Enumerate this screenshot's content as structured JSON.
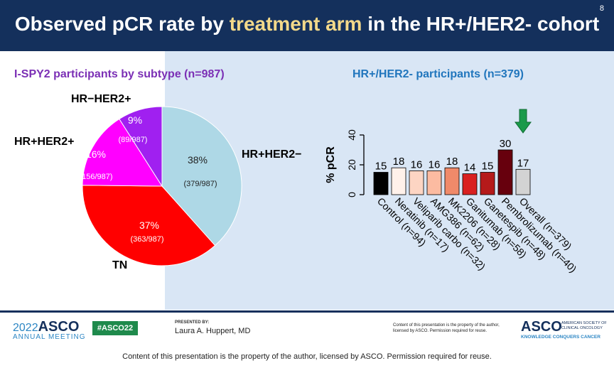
{
  "slide": {
    "number": "8",
    "title_pre": "Observed pCR rate by ",
    "title_highlight": "treatment arm",
    "title_post": " in the HR+/HER2- cohort"
  },
  "colors": {
    "title_bg": "#14305c",
    "highlight": "#f3d98a",
    "panel": "#d9e6f5"
  },
  "chart_data": [
    {
      "type": "pie",
      "title": "I-SPY2 participants by subtype (n=987)",
      "slices": [
        {
          "name": "HR+HER2−",
          "percent_label": "38%",
          "count_label": "(379/987)",
          "value": 379,
          "color": "#aed8e6"
        },
        {
          "name": "TN",
          "percent_label": "37%",
          "count_label": "(363/987)",
          "value": 363,
          "color": "#ff0000"
        },
        {
          "name": "HR+HER2+",
          "percent_label": "16%",
          "count_label": "(156/987)",
          "value": 156,
          "color": "#ff00ff"
        },
        {
          "name": "HR−HER2+",
          "percent_label": "9%",
          "count_label": "(89/987)",
          "value": 89,
          "color": "#a020f0"
        }
      ]
    },
    {
      "type": "bar",
      "title": "HR+/HER2- participants (n=379)",
      "ylabel": "% pCR",
      "ylim": [
        0,
        40
      ],
      "yticks": [
        "0",
        "20",
        "40"
      ],
      "categories": [
        "Control (n=94)",
        "Neratinib (n=17)",
        "Veliparib carbo (n=32)",
        "AMG386 (n=62)",
        "MK2206 (n=28)",
        "Ganitumab (n=58)",
        "Ganetespib (n=48)",
        "Pembrolizumab (n=40)",
        "Overall (n=379)"
      ],
      "values": [
        15,
        18,
        16,
        16,
        18,
        14,
        15,
        30,
        17
      ],
      "value_labels": [
        "15",
        "18",
        "16",
        "16",
        "18",
        "14",
        "15",
        "30",
        "17"
      ],
      "colors": [
        "#000000",
        "#fff1ea",
        "#fdd5c3",
        "#fcbba1",
        "#f08a6a",
        "#d92020",
        "#b51a1a",
        "#67000d",
        "#d3d3d3"
      ],
      "highlight_arrow_index": 7,
      "arrow_color": "#1a9a4a"
    }
  ],
  "footer": {
    "logo_year": "2022",
    "logo_name": "ASCO",
    "logo_sub": "ANNUAL MEETING",
    "hashtag": "#ASCO22",
    "presented_by": "PRESENTED BY:",
    "presenter": "Laura A. Huppert, MD",
    "fine_print": "Content of this presentation is the property of the author, licensed by ASCO. Permission required for reuse.",
    "org_name": "ASCO",
    "org_full": "AMERICAN SOCIETY OF CLINICAL ONCOLOGY",
    "org_tagline": "KNOWLEDGE CONQUERS CANCER",
    "bottom_note": "Content of this presentation is the property of the author, licensed by ASCO. Permission required for reuse."
  }
}
